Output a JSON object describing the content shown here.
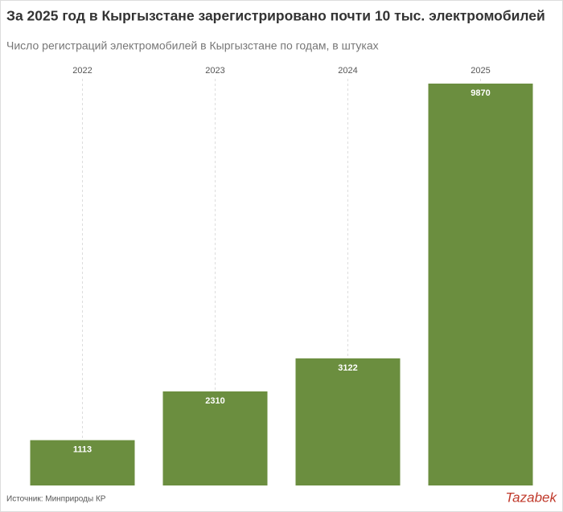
{
  "chart_data": {
    "type": "bar",
    "title": "За 2025 год в Кыргызстане зарегистрировано почти 10 тыс. электромобилей",
    "subtitle": "Число регистраций электромобилей в Кыргызстане по годам, в штуках",
    "categories": [
      "2022",
      "2023",
      "2024",
      "2025"
    ],
    "values": [
      1113,
      2310,
      3122,
      9870
    ],
    "color": "#6b8e3f",
    "grid": true,
    "source": "Источник: Минприроды КР",
    "brand": "Tazabek"
  }
}
